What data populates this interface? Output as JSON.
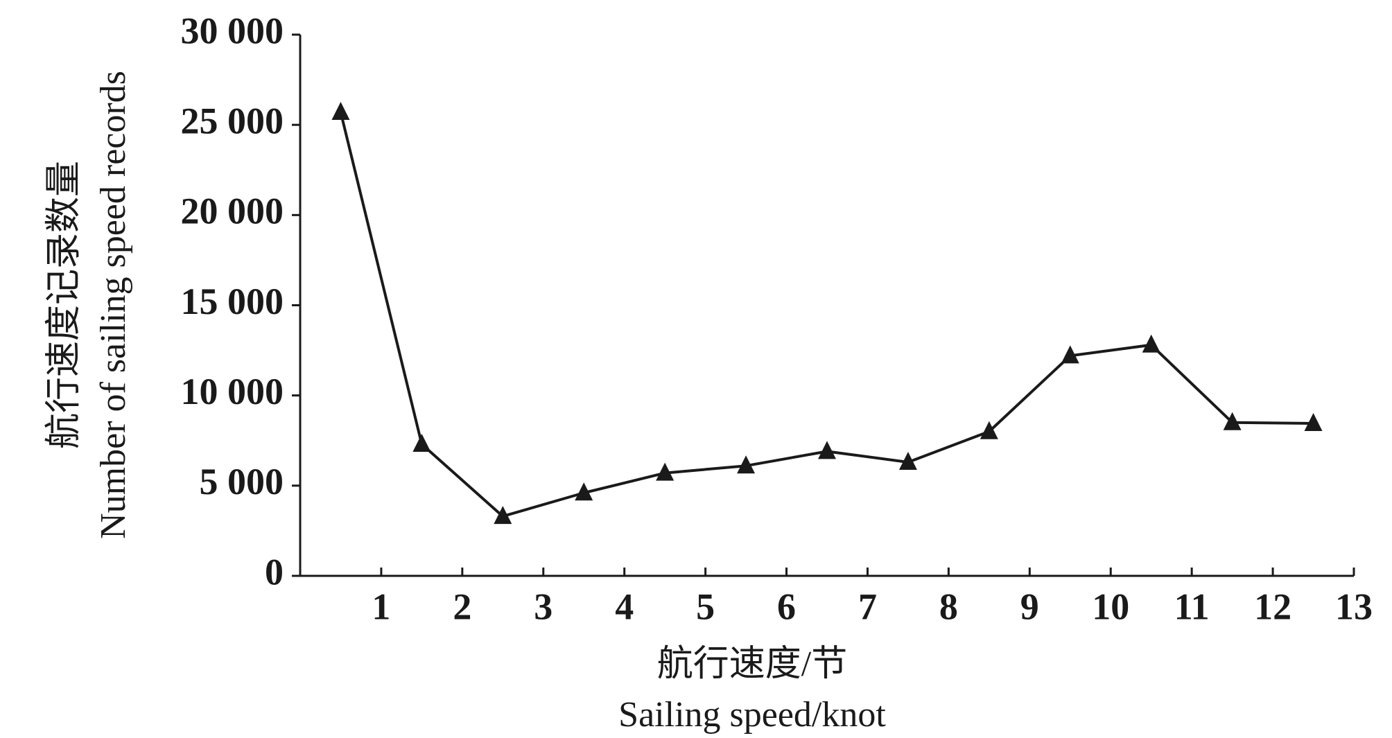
{
  "chart_data": {
    "type": "line",
    "ylabel": "航行速度记录数量",
    "ylabel_en": "Number of sailing speed records",
    "xlabel": "航行速度/节",
    "xlabel_en": "Sailing speed/knot",
    "x": [
      0.5,
      1.5,
      2.5,
      3.5,
      4.5,
      5.5,
      6.5,
      7.5,
      8.5,
      9.5,
      10.5,
      11.5,
      12.5
    ],
    "series": [
      {
        "color": "#1a1a1a",
        "marker": "triangle",
        "values": [
          25700,
          7300,
          3300,
          4600,
          5700,
          6100,
          6900,
          6300,
          8000,
          12200,
          12800,
          8500,
          8450
        ]
      }
    ],
    "xlim": [
      0,
      13
    ],
    "xticks": [
      1,
      2,
      3,
      4,
      5,
      6,
      7,
      8,
      9,
      10,
      11,
      12,
      13
    ],
    "ylim": [
      0,
      30000
    ],
    "yticks": [
      0,
      {
        "value": 5000,
        "label": "5 000"
      },
      {
        "value": 10000,
        "label": "10 000"
      },
      {
        "value": 15000,
        "label": "15 000"
      },
      {
        "value": 20000,
        "label": "20 000"
      },
      {
        "value": 25000,
        "label": "25 000"
      },
      {
        "value": 30000,
        "label": "30 000"
      }
    ],
    "grid": false
  }
}
